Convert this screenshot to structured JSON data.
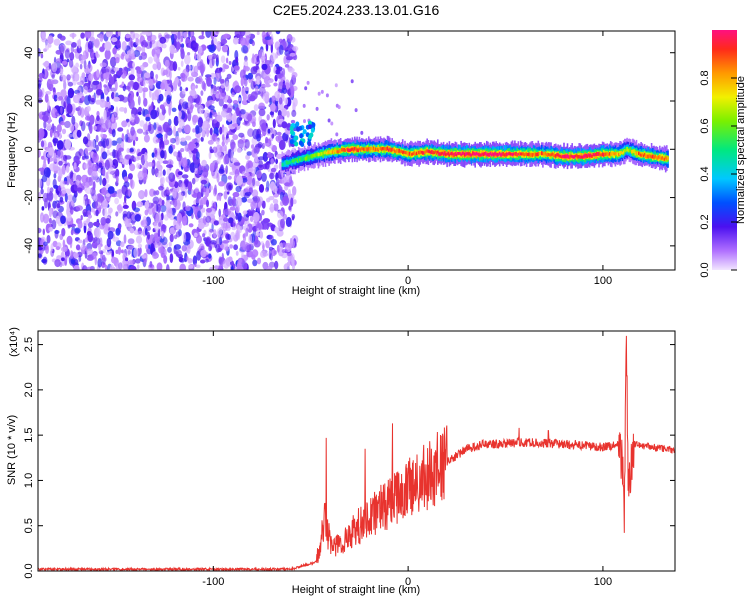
{
  "title": "C2E5.2024.233.13.01.G16",
  "chart_data": [
    {
      "type": "heatmap",
      "xlabel": "Height of straight line (km)",
      "ylabel": "Frequency (Hz)",
      "xlim": [
        -190,
        137
      ],
      "ylim": [
        -50,
        49
      ],
      "x_ticks": [
        -100,
        0,
        100
      ],
      "y_ticks": [
        -40,
        -20,
        0,
        20,
        40
      ],
      "colorbar": {
        "label": "Normalized spectral amplitude",
        "range": [
          0,
          1
        ],
        "ticks": [
          0.0,
          0.2,
          0.4,
          0.6,
          0.8
        ]
      },
      "noise_region_x": [
        -190,
        -60
      ],
      "signal_ridge": [
        {
          "x": -65,
          "y": -6,
          "a": 0.45
        },
        {
          "x": -60,
          "y": -5,
          "a": 0.5
        },
        {
          "x": -55,
          "y": -4,
          "a": 0.55
        },
        {
          "x": -50,
          "y": -3,
          "a": 0.6
        },
        {
          "x": -45,
          "y": -2,
          "a": 0.65
        },
        {
          "x": -40,
          "y": -1,
          "a": 0.75
        },
        {
          "x": -30,
          "y": 0,
          "a": 0.95
        },
        {
          "x": -20,
          "y": 0,
          "a": 0.8
        },
        {
          "x": -10,
          "y": 0,
          "a": 0.9
        },
        {
          "x": 0,
          "y": -2,
          "a": 0.85
        },
        {
          "x": 10,
          "y": -1,
          "a": 0.9
        },
        {
          "x": 20,
          "y": -2,
          "a": 0.95
        },
        {
          "x": 30,
          "y": -2,
          "a": 0.98
        },
        {
          "x": 40,
          "y": -2,
          "a": 0.98
        },
        {
          "x": 50,
          "y": -2,
          "a": 0.96
        },
        {
          "x": 60,
          "y": -2,
          "a": 0.9
        },
        {
          "x": 70,
          "y": -2,
          "a": 0.85
        },
        {
          "x": 80,
          "y": -3,
          "a": 0.95
        },
        {
          "x": 90,
          "y": -3,
          "a": 0.98
        },
        {
          "x": 100,
          "y": -2,
          "a": 0.92
        },
        {
          "x": 108,
          "y": -2,
          "a": 0.8
        },
        {
          "x": 112,
          "y": 0,
          "a": 0.6
        },
        {
          "x": 118,
          "y": -2,
          "a": 0.85
        },
        {
          "x": 125,
          "y": -3,
          "a": 0.9
        },
        {
          "x": 133,
          "y": -4,
          "a": 0.8
        }
      ]
    },
    {
      "type": "line",
      "xlabel": "Height of straight line (km)",
      "ylabel": "SNR (10 * v/v)",
      "y_scale_label": "(x10⁴)",
      "y_scale_factor": 10000,
      "xlim": [
        -190,
        137
      ],
      "ylim": [
        0,
        2.65
      ],
      "x_ticks": [
        -100,
        0,
        100
      ],
      "y_ticks": [
        0.0,
        0.5,
        1.0,
        1.5,
        2.0,
        2.5
      ],
      "color": "#e8332e",
      "envelope": [
        {
          "x": -190,
          "y": 0.02
        },
        {
          "x": -60,
          "y": 0.02
        },
        {
          "x": -47,
          "y": 0.1
        },
        {
          "x": -43,
          "y": 0.6
        },
        {
          "x": -41,
          "y": 0.4
        },
        {
          "x": -38,
          "y": 0.25
        },
        {
          "x": -30,
          "y": 0.4
        },
        {
          "x": -20,
          "y": 0.6
        },
        {
          "x": -10,
          "y": 0.75
        },
        {
          "x": 0,
          "y": 0.9
        },
        {
          "x": 10,
          "y": 1.05
        },
        {
          "x": 20,
          "y": 1.2
        },
        {
          "x": 30,
          "y": 1.35
        },
        {
          "x": 40,
          "y": 1.4
        },
        {
          "x": 60,
          "y": 1.42
        },
        {
          "x": 80,
          "y": 1.4
        },
        {
          "x": 100,
          "y": 1.37
        },
        {
          "x": 108,
          "y": 1.4
        },
        {
          "x": 110,
          "y": 1.2
        },
        {
          "x": 111,
          "y": 0.6
        },
        {
          "x": 112,
          "y": 2.65
        },
        {
          "x": 113,
          "y": 0.9
        },
        {
          "x": 116,
          "y": 1.4
        },
        {
          "x": 137,
          "y": 1.33
        }
      ],
      "spikes": [
        {
          "x": -42,
          "y": 1.47
        },
        {
          "x": -22,
          "y": 1.35
        },
        {
          "x": -8,
          "y": 1.63
        },
        {
          "x": 12,
          "y": 1.35
        },
        {
          "x": 57,
          "y": 1.58
        },
        {
          "x": 72,
          "y": 1.55
        }
      ]
    }
  ]
}
